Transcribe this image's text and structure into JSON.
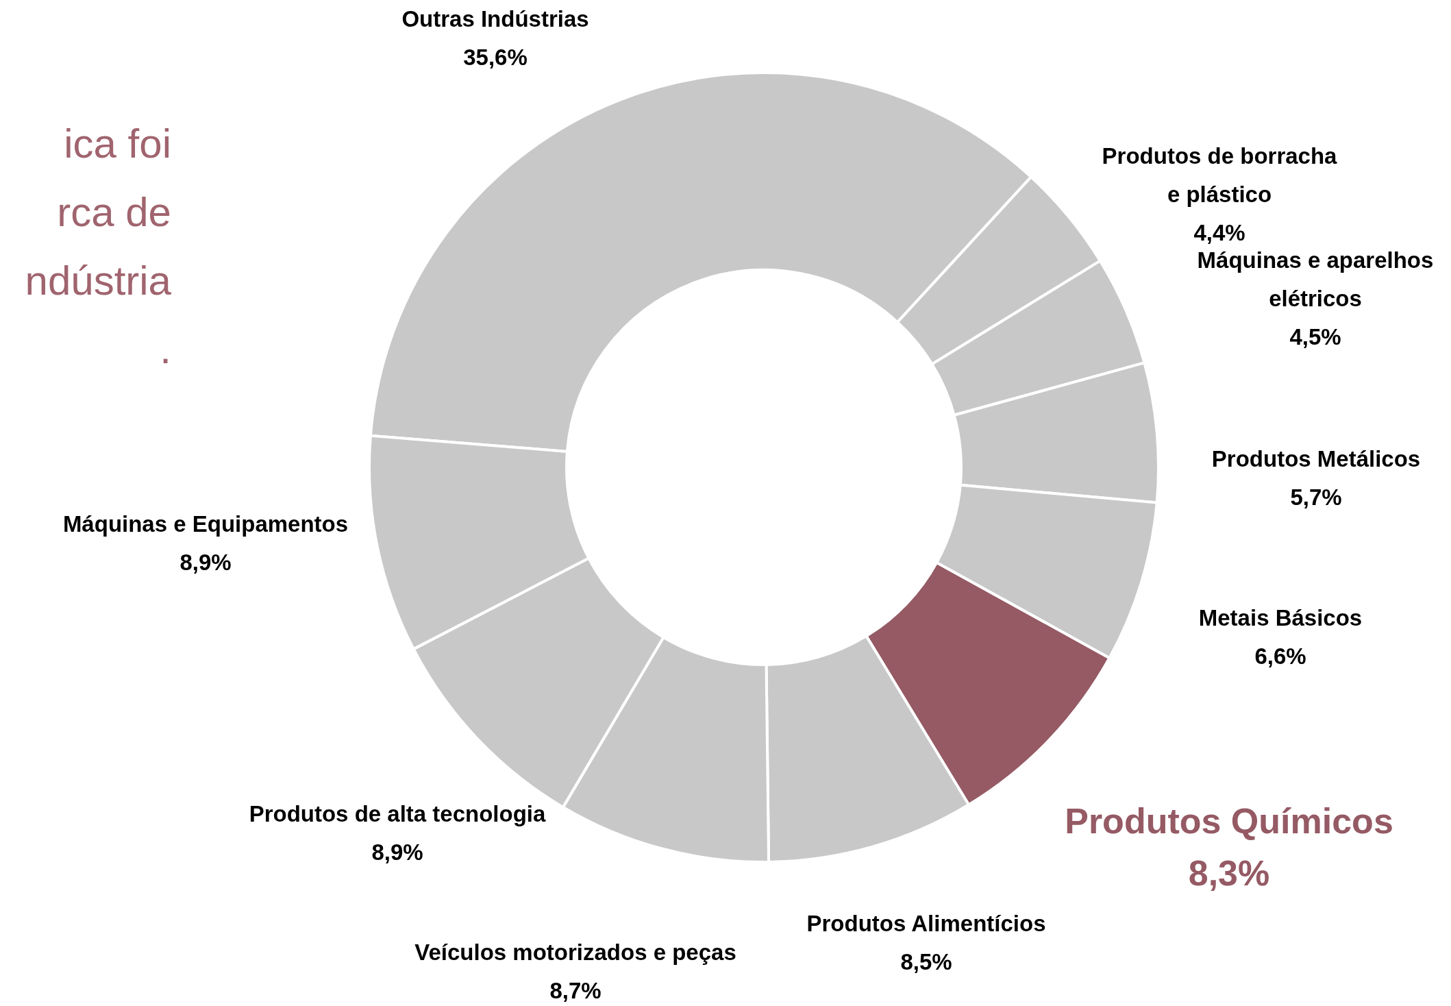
{
  "chart_data": {
    "type": "donut",
    "categories": [
      "Outras Indústrias",
      "Produtos de borracha e plástico",
      "Máquinas e aparelhos elétricos",
      "Produtos Metálicos",
      "Metais Básicos",
      "Produtos Químicos",
      "Produtos Alimentícios",
      "Veículos motorizados e peças",
      "Produtos de alta tecnologia",
      "Máquinas e Equipamentos"
    ],
    "values": [
      35.6,
      4.4,
      4.5,
      5.7,
      6.6,
      8.3,
      8.5,
      8.7,
      8.9,
      8.9
    ],
    "value_labels": [
      "35,6%",
      "4,4%",
      "4,5%",
      "5,7%",
      "6,6%",
      "8,3%",
      "8,5%",
      "8,7%",
      "8,9%",
      "8,9%"
    ],
    "colors": [
      "#c8c8c8",
      "#c8c8c8",
      "#c8c8c8",
      "#c8c8c8",
      "#c8c8c8",
      "#955a64",
      "#c8c8c8",
      "#c8c8c8",
      "#c8c8c8",
      "#c8c8c8"
    ],
    "annotations": [
      "ica foi",
      "rca de",
      "ndústria",
      "."
    ],
    "legend": false
  }
}
